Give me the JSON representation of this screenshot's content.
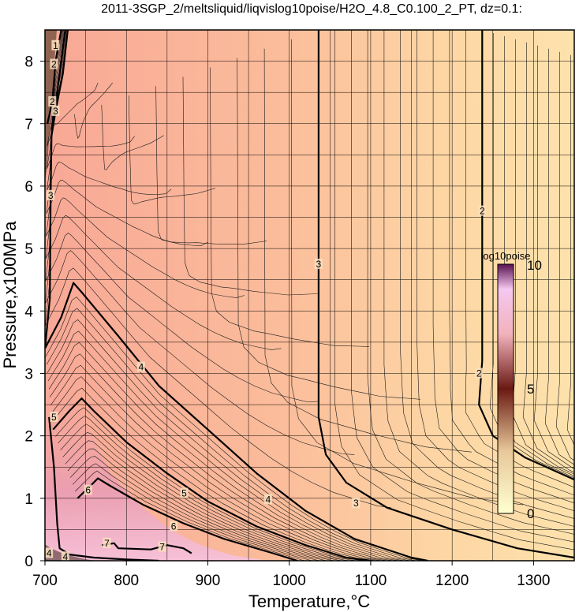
{
  "chart_data": {
    "type": "heatmap",
    "title": "2011-3SGP_2/meltsliquid/liqvislog10poise/H2O_4.8_C0.100_2_PT, dz=0.1:",
    "xlabel": "Temperature,°C",
    "ylabel": "Pressure,x100MPa",
    "xlim": [
      700,
      1350
    ],
    "ylim": [
      0,
      8.5
    ],
    "x_ticks": [
      "700",
      "800",
      "900",
      "1000",
      "1100",
      "1200",
      "1300"
    ],
    "y_ticks": [
      "0",
      "1",
      "2",
      "3",
      "4",
      "5",
      "6",
      "7",
      "8"
    ],
    "grid": true,
    "colorbar": {
      "title": "log10poise",
      "range": [
        0,
        10
      ],
      "ticks": [
        "0",
        "5",
        "10"
      ],
      "colors": [
        "#ffffd0",
        "#6a1a12",
        "#f2b2bc",
        "#5a1050"
      ]
    },
    "contour_labels": [
      {
        "text": "2",
        "x": 1237,
        "y": 5.6
      },
      {
        "text": "2",
        "x": 1233,
        "y": 3.0
      },
      {
        "text": "3",
        "x": 1036,
        "y": 4.75
      },
      {
        "text": "3",
        "x": 1082,
        "y": 0.92
      },
      {
        "text": "3",
        "x": 707,
        "y": 5.85
      },
      {
        "text": "3",
        "x": 713,
        "y": 7.2
      },
      {
        "text": "2",
        "x": 709,
        "y": 7.35
      },
      {
        "text": "2",
        "x": 711,
        "y": 7.95
      },
      {
        "text": "1",
        "x": 713,
        "y": 8.25
      },
      {
        "text": "4",
        "x": 818,
        "y": 3.1
      },
      {
        "text": "4",
        "x": 974,
        "y": 0.98
      },
      {
        "text": "5",
        "x": 711,
        "y": 2.3
      },
      {
        "text": "5",
        "x": 871,
        "y": 1.08
      },
      {
        "text": "6",
        "x": 753,
        "y": 1.13
      },
      {
        "text": "6",
        "x": 858,
        "y": 0.55
      },
      {
        "text": "7",
        "x": 776,
        "y": 0.28
      },
      {
        "text": "7",
        "x": 844,
        "y": 0.22
      },
      {
        "text": "4",
        "x": 705,
        "y": 0.12
      },
      {
        "text": "4",
        "x": 725,
        "y": 0.06
      }
    ],
    "major_contours": [
      {
        "level": 2,
        "points": [
          [
            1237,
            8.5
          ],
          [
            1237,
            5.6
          ],
          [
            1237,
            3.2
          ],
          [
            1233,
            2.5
          ],
          [
            1250,
            2.0
          ],
          [
            1290,
            1.65
          ],
          [
            1350,
            1.3
          ]
        ]
      },
      {
        "level": 3,
        "points": [
          [
            1036,
            8.5
          ],
          [
            1036,
            4.75
          ],
          [
            1036,
            2.3
          ],
          [
            1045,
            1.7
          ],
          [
            1070,
            1.25
          ],
          [
            1120,
            0.85
          ],
          [
            1200,
            0.5
          ],
          [
            1280,
            0.2
          ],
          [
            1350,
            0.05
          ]
        ]
      },
      {
        "level": 3,
        "points": [
          [
            700,
            3.4
          ],
          [
            706,
            4.2
          ],
          [
            707,
            5.85
          ],
          [
            708,
            6.8
          ],
          [
            713,
            7.2
          ],
          [
            722,
            7.8
          ],
          [
            728,
            8.5
          ]
        ]
      },
      {
        "level": 2,
        "points": [
          [
            703,
            7.0
          ],
          [
            709,
            7.35
          ],
          [
            713,
            8.0
          ],
          [
            720,
            8.5
          ]
        ]
      },
      {
        "level": 4,
        "points": [
          [
            700,
            3.4
          ],
          [
            720,
            3.9
          ],
          [
            735,
            4.45
          ],
          [
            745,
            4.3
          ],
          [
            790,
            3.6
          ],
          [
            840,
            2.8
          ],
          [
            900,
            2.1
          ],
          [
            960,
            1.4
          ],
          [
            1020,
            0.8
          ],
          [
            1080,
            0.35
          ],
          [
            1150,
            0.05
          ],
          [
            1170,
            0.0
          ]
        ]
      },
      {
        "level": 5,
        "points": [
          [
            710,
            2.1
          ],
          [
            730,
            2.4
          ],
          [
            745,
            2.6
          ],
          [
            760,
            2.4
          ],
          [
            800,
            1.9
          ],
          [
            850,
            1.4
          ],
          [
            900,
            0.95
          ],
          [
            960,
            0.55
          ],
          [
            1020,
            0.25
          ],
          [
            1070,
            0.05
          ],
          [
            1100,
            0.0
          ]
        ]
      },
      {
        "level": 6,
        "points": [
          [
            740,
            1.0
          ],
          [
            752,
            1.15
          ],
          [
            765,
            1.32
          ],
          [
            780,
            1.2
          ],
          [
            820,
            0.9
          ],
          [
            870,
            0.6
          ],
          [
            920,
            0.35
          ],
          [
            980,
            0.12
          ],
          [
            1010,
            0.0
          ]
        ]
      },
      {
        "level": 7,
        "points": [
          [
            770,
            0.25
          ],
          [
            785,
            0.28
          ],
          [
            790,
            0.2
          ],
          [
            830,
            0.18
          ],
          [
            850,
            0.25
          ],
          [
            870,
            0.2
          ],
          [
            880,
            0.12
          ]
        ]
      },
      {
        "level": 5,
        "points": [
          [
            705,
            2.3
          ],
          [
            711,
            1.5
          ],
          [
            715,
            0.6
          ],
          [
            718,
            0.2
          ],
          [
            730,
            0.1
          ],
          [
            760,
            0.05
          ],
          [
            800,
            0.02
          ],
          [
            840,
            0.0
          ]
        ]
      },
      {
        "level": 5,
        "points": [
          [
            725,
            8.5
          ],
          [
            718,
            7.8
          ],
          [
            713,
            7.3
          ],
          [
            708,
            6.9
          ]
        ]
      }
    ]
  }
}
